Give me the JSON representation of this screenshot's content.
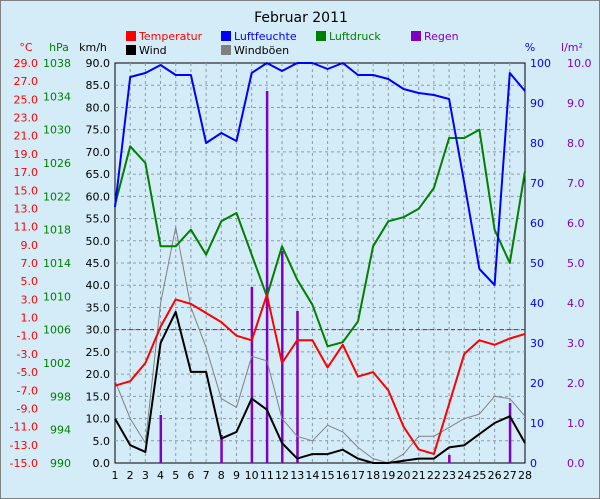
{
  "chart_data": {
    "type": "line",
    "title": "Februar 2011",
    "x": [
      1,
      2,
      3,
      4,
      5,
      6,
      7,
      8,
      9,
      10,
      11,
      12,
      13,
      14,
      15,
      16,
      17,
      18,
      19,
      20,
      21,
      22,
      23,
      24,
      25,
      26,
      27,
      28
    ],
    "axes": {
      "x": {
        "ticks": [
          "1",
          "2",
          "3",
          "4",
          "5",
          "6",
          "7",
          "8",
          "9",
          "10",
          "11",
          "12",
          "13",
          "14",
          "15",
          "16",
          "17",
          "18",
          "19",
          "20",
          "21",
          "22",
          "23",
          "24",
          "25",
          "26",
          "27",
          "28"
        ]
      },
      "temperature": {
        "label": "°C",
        "color": "#ff0000",
        "range": [
          -15,
          29
        ],
        "ticks": [
          "29.0",
          "27.0",
          "25.0",
          "23.0",
          "21.0",
          "19.0",
          "17.0",
          "15.0",
          "13.0",
          "11.0",
          "9.0",
          "7.0",
          "5.0",
          "3.0",
          "1.0",
          "-1.0",
          "-3.0",
          "-5.0",
          "-7.0",
          "-9.0",
          "-11.0",
          "-13.0",
          "-15.0"
        ]
      },
      "pressure": {
        "label": "hPa",
        "color": "#008000",
        "range": [
          990,
          1038
        ],
        "ticks": [
          "1038",
          "1034",
          "1030",
          "1026",
          "1022",
          "1018",
          "1014",
          "1010",
          "1006",
          "1002",
          "998",
          "994",
          "990"
        ]
      },
      "wind": {
        "label": "km/h",
        "color": "#000000",
        "range": [
          0,
          90
        ],
        "ticks": [
          "90.0",
          "85.0",
          "80.0",
          "75.0",
          "70.0",
          "65.0",
          "60.0",
          "55.0",
          "50.0",
          "45.0",
          "40.0",
          "35.0",
          "30.0",
          "25.0",
          "20.0",
          "15.0",
          "10.0",
          "5.0",
          "0.0"
        ]
      },
      "humidity": {
        "label": "%",
        "color": "#0000ff",
        "range": [
          0,
          100
        ],
        "ticks": [
          "100",
          "90",
          "80",
          "70",
          "60",
          "50",
          "40",
          "30",
          "20",
          "10",
          "0"
        ]
      },
      "rain": {
        "label": "l/m²",
        "color": "#8000c0",
        "range": [
          0,
          10
        ],
        "ticks": [
          "10.0",
          "9.0",
          "8.0",
          "7.0",
          "6.0",
          "5.0",
          "4.0",
          "3.0",
          "2.0",
          "1.0",
          "0.0"
        ]
      }
    },
    "legend": [
      {
        "name": "Temperatur",
        "color": "#ff0000"
      },
      {
        "name": "Wind",
        "color": "#000000"
      },
      {
        "name": "Luftfeuchte",
        "color": "#0000ff"
      },
      {
        "name": "Windböen",
        "color": "#808080"
      },
      {
        "name": "Luftdruck",
        "color": "#008000"
      },
      {
        "name": "Regen",
        "color": "#8000c0"
      }
    ],
    "series": [
      {
        "name": "Temperatur",
        "axis": "temperature",
        "color": "#ff0000",
        "values": [
          -6.5,
          -6,
          -4,
          0,
          3,
          2.5,
          1.5,
          0.5,
          -1,
          -1.5,
          3.5,
          -4,
          -1.5,
          -1.5,
          -4.5,
          -2,
          -5.5,
          -5,
          -7,
          -11,
          -13.5,
          -14,
          -8.5,
          -3,
          -1.5,
          -2,
          -1.3,
          -0.8
        ]
      },
      {
        "name": "Wind",
        "axis": "wind",
        "color": "#000000",
        "values": [
          10,
          4,
          2.5,
          27,
          34,
          20.5,
          20.5,
          5.5,
          7,
          14.5,
          12,
          4.5,
          1,
          2,
          2,
          3,
          1,
          0,
          0,
          0.5,
          1,
          1,
          3.5,
          4,
          6.5,
          9,
          10.5,
          4.5
        ]
      },
      {
        "name": "Windböen",
        "axis": "wind",
        "color": "#808080",
        "values": [
          18.5,
          10,
          4.5,
          36,
          53,
          35,
          26,
          14.5,
          12.5,
          24,
          23,
          10,
          6,
          5,
          8.5,
          7,
          3.5,
          1,
          0,
          2,
          6,
          6,
          8,
          10,
          11,
          15,
          14.5,
          10.5
        ]
      },
      {
        "name": "Luftfeuchte",
        "axis": "humidity",
        "color": "#0000ff",
        "values": [
          64,
          96.5,
          97.5,
          99.5,
          97,
          97,
          80,
          82.5,
          80.5,
          97.5,
          100,
          98,
          100,
          100,
          98.5,
          100,
          97,
          97,
          96,
          93.5,
          92.5,
          92,
          91,
          70,
          48.5,
          44.5,
          97.5,
          93
        ]
      },
      {
        "name": "Luftdruck",
        "axis": "pressure",
        "color": "#008000",
        "values": [
          1021,
          1028,
          1026,
          1016,
          1016,
          1018,
          1015,
          1019,
          1020,
          1015,
          1010,
          1016,
          1012,
          1009,
          1004,
          1004.5,
          1007,
          1016,
          1019,
          1019.5,
          1020.5,
          1023,
          1029,
          1029,
          1030,
          1018,
          1014,
          1025
        ]
      },
      {
        "name": "Regen",
        "axis": "rain",
        "color": "#8000c0",
        "type": "bar",
        "values": [
          0,
          0,
          0,
          1.2,
          0,
          0,
          0,
          0.7,
          0,
          4.4,
          9.3,
          5.3,
          3.8,
          0,
          0,
          0,
          0,
          0,
          0,
          0,
          0,
          0,
          0.2,
          0,
          0,
          0,
          1.5,
          0
        ]
      }
    ],
    "reference_line": {
      "axis": "wind",
      "value": 30,
      "color": "#c00060"
    },
    "grid": true
  }
}
